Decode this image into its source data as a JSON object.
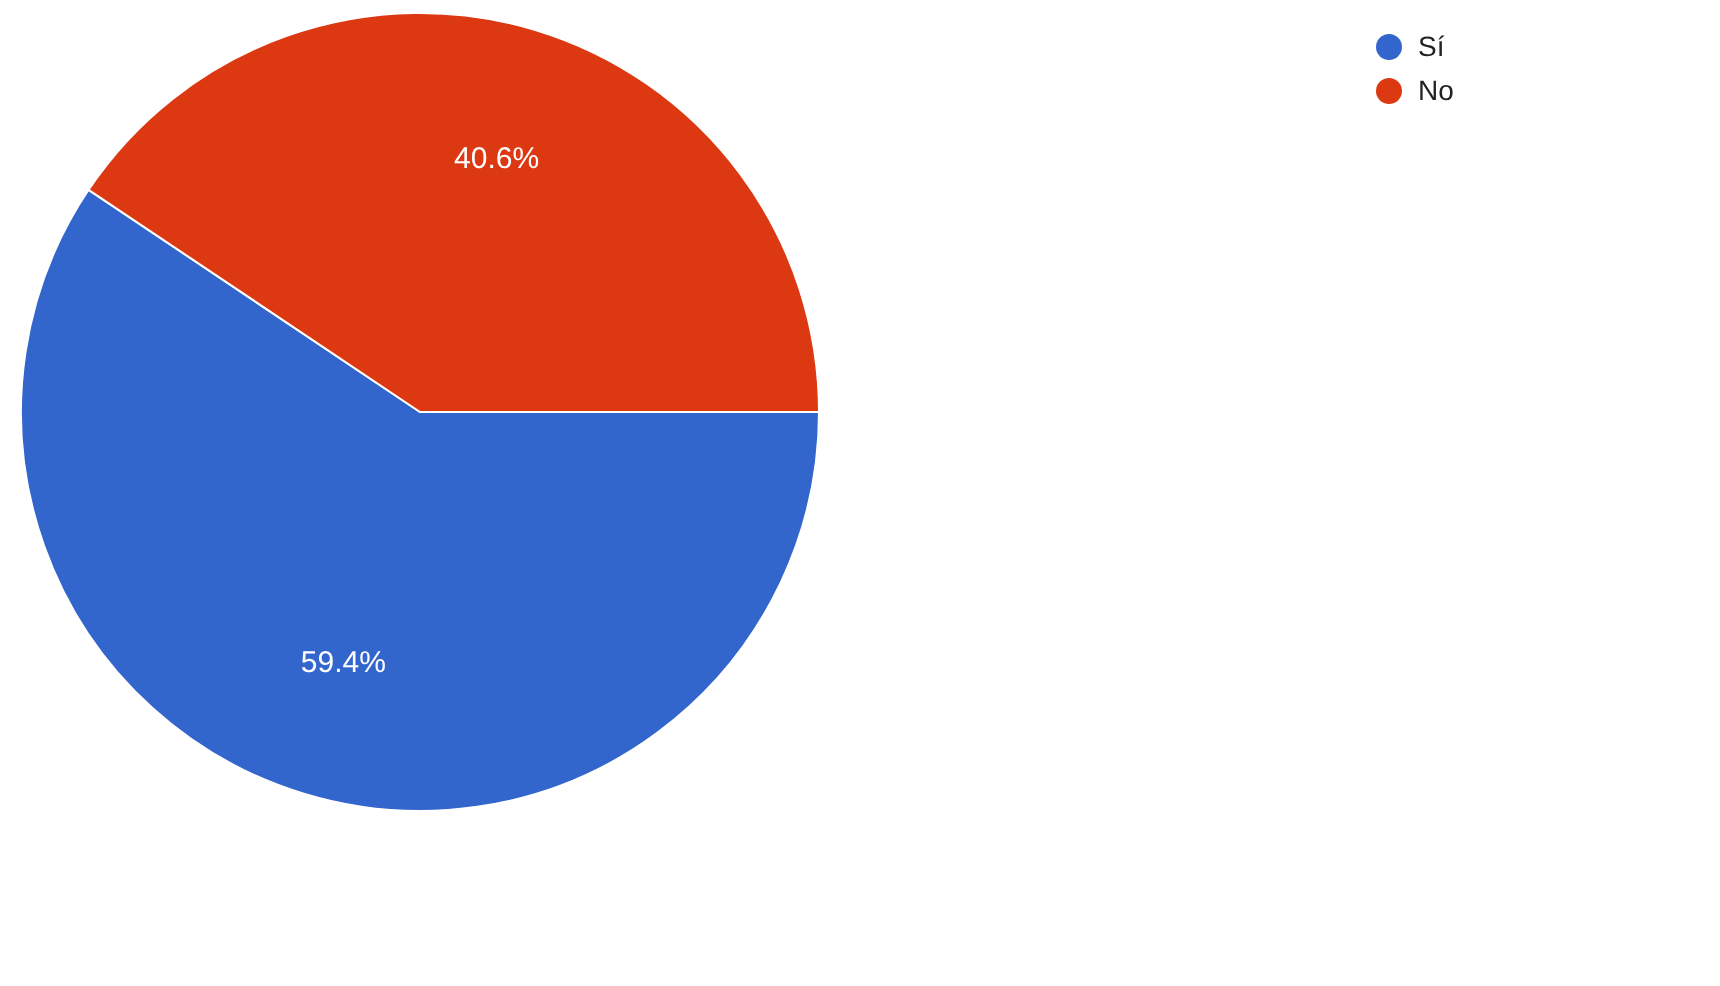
{
  "chart_data": {
    "type": "pie",
    "categories": [
      "Sí",
      "No"
    ],
    "values": [
      59.4,
      40.6
    ],
    "colors": [
      "#3366cc",
      "#dc3912"
    ],
    "value_labels": [
      "59.4%",
      "40.6%"
    ],
    "legend": "top right"
  }
}
